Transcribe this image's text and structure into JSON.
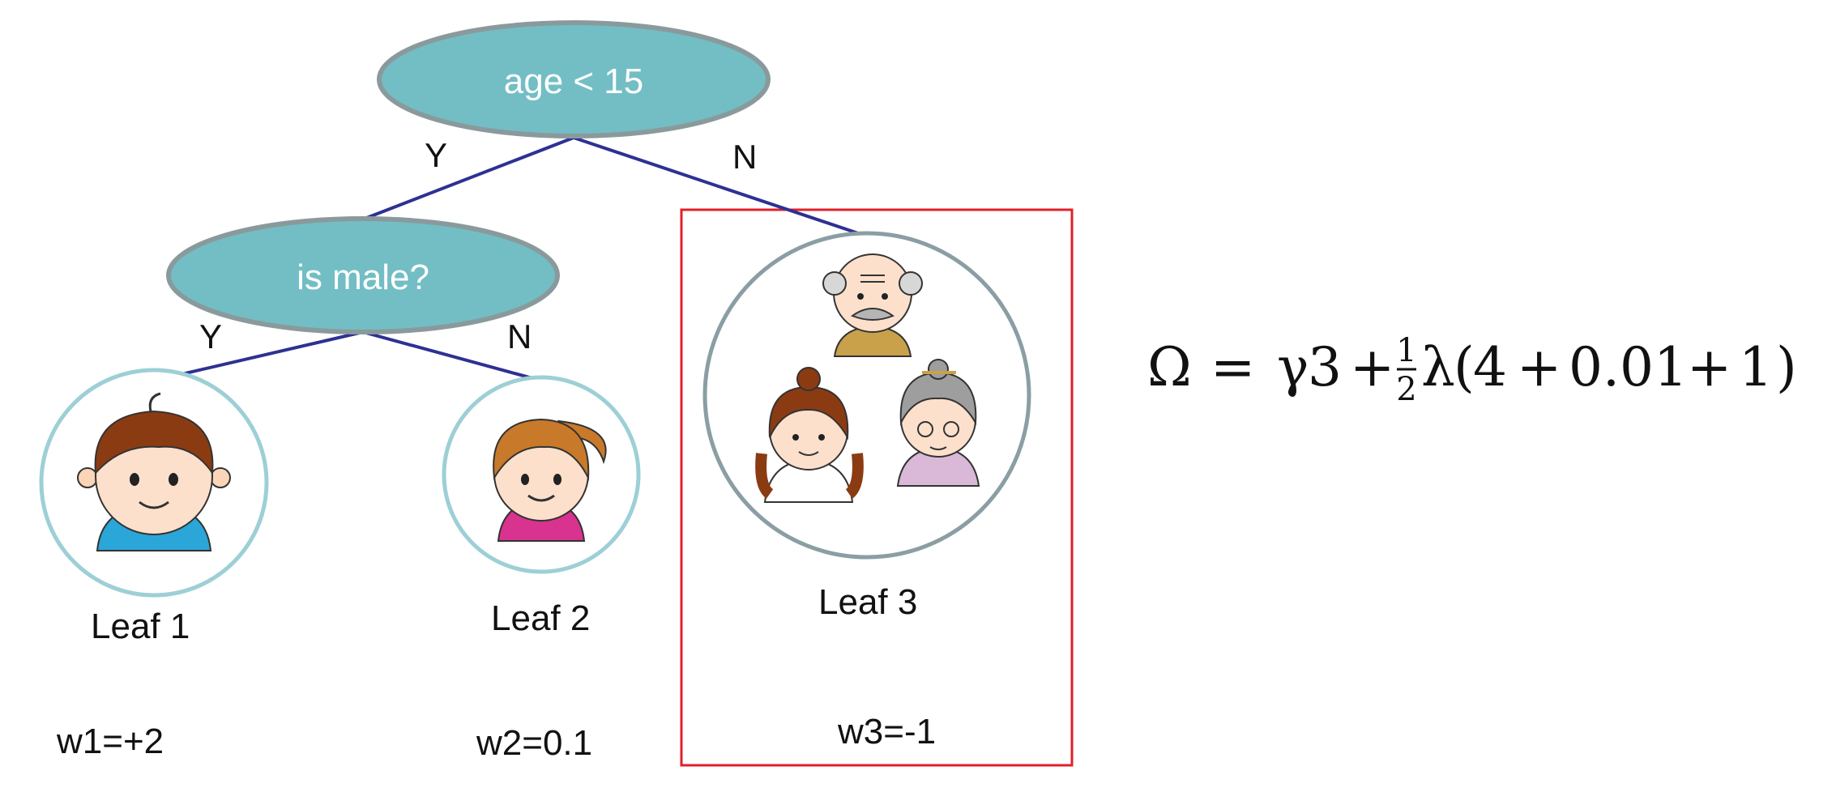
{
  "nodes": {
    "root": {
      "label": "age < 15"
    },
    "male": {
      "label": "is male?"
    }
  },
  "edges": {
    "root_yes": "Y",
    "root_no": "N",
    "male_yes": "Y",
    "male_no": "N"
  },
  "leaves": [
    {
      "label": "Leaf 1",
      "weight": "w1=+2",
      "icon": "boy-icon"
    },
    {
      "label": "Leaf 2",
      "weight": "w2=0.1",
      "icon": "girl-icon"
    },
    {
      "label": "Leaf 3",
      "weight": "w3=-1",
      "icon": "family-icon"
    }
  ],
  "formula": {
    "lhs": "Ω",
    "eq": "=",
    "gamma": "γ",
    "leaf_count": "3",
    "plus": "+",
    "frac_num": "1",
    "frac_den": "2",
    "lambda": "λ",
    "open": "(",
    "t1": "4",
    "t2": "0.01",
    "t3": "1",
    "close": ")"
  },
  "colors": {
    "node_fill": "#72bec4",
    "node_stroke": "#8a9a9c",
    "edge": "#2e3192",
    "leaf_ring": "#9dcfd6",
    "leaf3_ring": "#8a9ea3",
    "highlight": "#e0202a"
  }
}
